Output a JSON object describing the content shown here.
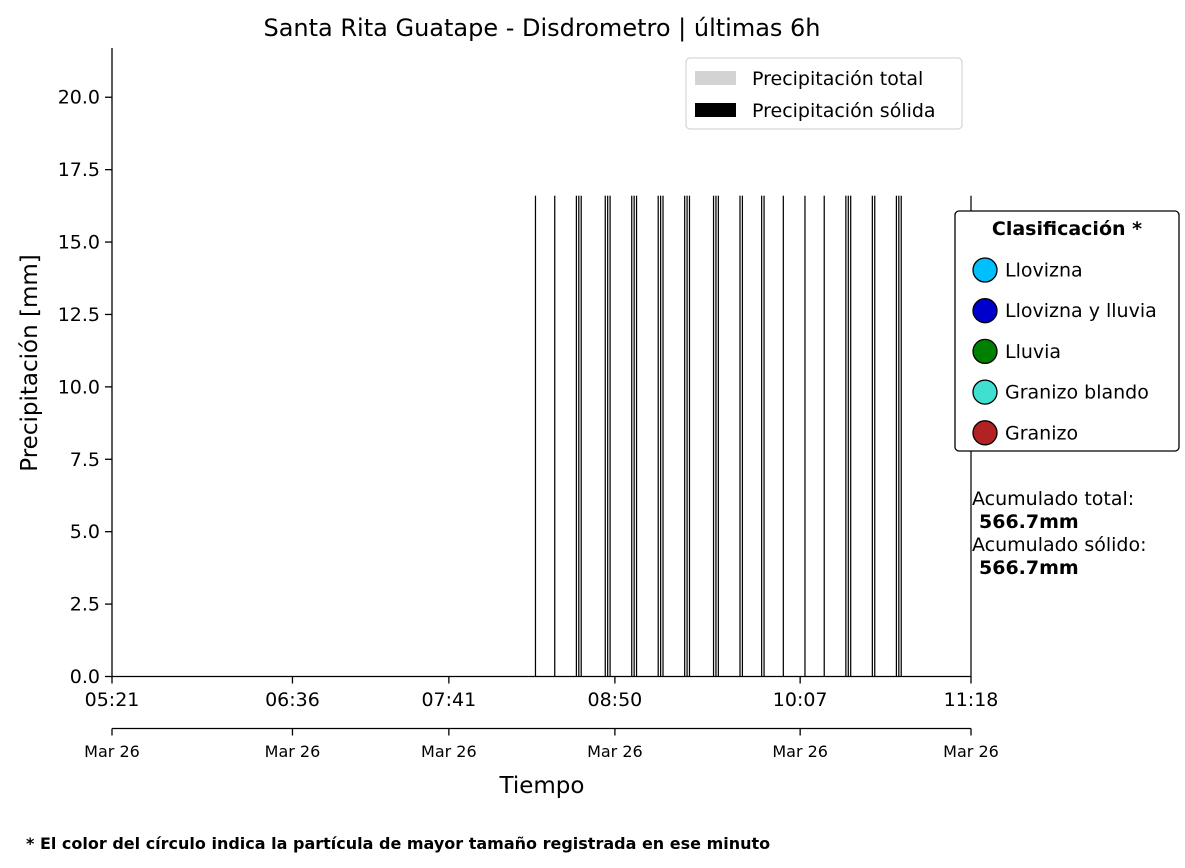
{
  "chart_data": {
    "type": "bar",
    "title": "Santa Rita Guatape - Disdrometro  |  últimas 6h",
    "xlabel": "Tiempo",
    "ylabel": "Precipitación [mm]",
    "ylim": [
      0,
      21.7
    ],
    "yticks": [
      "0.0",
      "2.5",
      "5.0",
      "7.5",
      "10.0",
      "12.5",
      "15.0",
      "17.5",
      "20.0"
    ],
    "xlim": [
      "05:21",
      "11:18"
    ],
    "xticks": [
      {
        "time": "05:21",
        "date": "Mar 26"
      },
      {
        "time": "06:36",
        "date": "Mar 26"
      },
      {
        "time": "07:41",
        "date": "Mar 26"
      },
      {
        "time": "08:50",
        "date": "Mar 26"
      },
      {
        "time": "10:07",
        "date": "Mar 26"
      },
      {
        "time": "11:18",
        "date": "Mar 26"
      }
    ],
    "grid": false,
    "legend_position": "top-right",
    "series": [
      {
        "name": "Precipitación total",
        "color": "#d3d3d3",
        "times": [
          "08:17",
          "08:25",
          "08:34",
          "08:35",
          "08:36",
          "08:46",
          "08:47",
          "08:48",
          "08:57",
          "08:58",
          "08:59",
          "09:08",
          "09:09",
          "09:10",
          "09:19",
          "09:20",
          "09:21",
          "09:31",
          "09:32",
          "09:33",
          "09:42",
          "09:43",
          "09:51",
          "09:52",
          "10:00",
          "10:09",
          "10:17",
          "10:26",
          "10:27",
          "10:28",
          "10:37",
          "10:38",
          "10:47",
          "10:48",
          "10:49",
          "11:18"
        ],
        "values": [
          16.6,
          16.6,
          16.6,
          16.6,
          16.6,
          16.6,
          16.6,
          16.6,
          16.6,
          16.6,
          16.6,
          16.6,
          16.6,
          16.6,
          16.6,
          16.6,
          16.6,
          16.6,
          16.6,
          16.6,
          16.6,
          16.6,
          16.6,
          16.6,
          16.6,
          16.6,
          16.6,
          16.6,
          16.6,
          16.6,
          16.6,
          16.6,
          16.6,
          16.6,
          16.6,
          16.6
        ]
      },
      {
        "name": "Precipitación sólida",
        "color": "#000000",
        "times": [
          "08:17",
          "08:25",
          "08:34",
          "08:35",
          "08:36",
          "08:46",
          "08:47",
          "08:48",
          "08:57",
          "08:58",
          "08:59",
          "09:08",
          "09:09",
          "09:10",
          "09:19",
          "09:20",
          "09:21",
          "09:31",
          "09:32",
          "09:33",
          "09:42",
          "09:43",
          "09:51",
          "09:52",
          "10:00",
          "10:09",
          "10:17",
          "10:26",
          "10:27",
          "10:28",
          "10:37",
          "10:38",
          "10:47",
          "10:48",
          "10:49",
          "11:18"
        ],
        "values": [
          16.6,
          16.6,
          16.6,
          16.6,
          16.6,
          16.6,
          16.6,
          16.6,
          16.6,
          16.6,
          16.6,
          16.6,
          16.6,
          16.6,
          16.6,
          16.6,
          16.6,
          16.6,
          16.6,
          16.6,
          16.6,
          16.6,
          16.6,
          16.6,
          16.6,
          16.6,
          16.6,
          16.6,
          16.6,
          16.6,
          16.6,
          16.6,
          16.6,
          16.6,
          16.6,
          16.6
        ]
      }
    ],
    "classification_legend": {
      "title": "Clasificación *",
      "items": [
        {
          "label": "Llovizna",
          "color": "#00bfff"
        },
        {
          "label": "Llovizna y lluvia",
          "color": "#0000cd"
        },
        {
          "label": "Lluvia",
          "color": "#008000"
        },
        {
          "label": "Granizo blando",
          "color": "#40e0d0"
        },
        {
          "label": "Granizo",
          "color": "#b22222"
        }
      ]
    },
    "annotations": {
      "total_label": "Acumulado total:",
      "total_value": "566.7mm",
      "solid_label": "Acumulado sólido:",
      "solid_value": "566.7mm"
    },
    "footnote": "* El color del círculo indica la partícula de mayor tamaño registrada en ese minuto"
  }
}
